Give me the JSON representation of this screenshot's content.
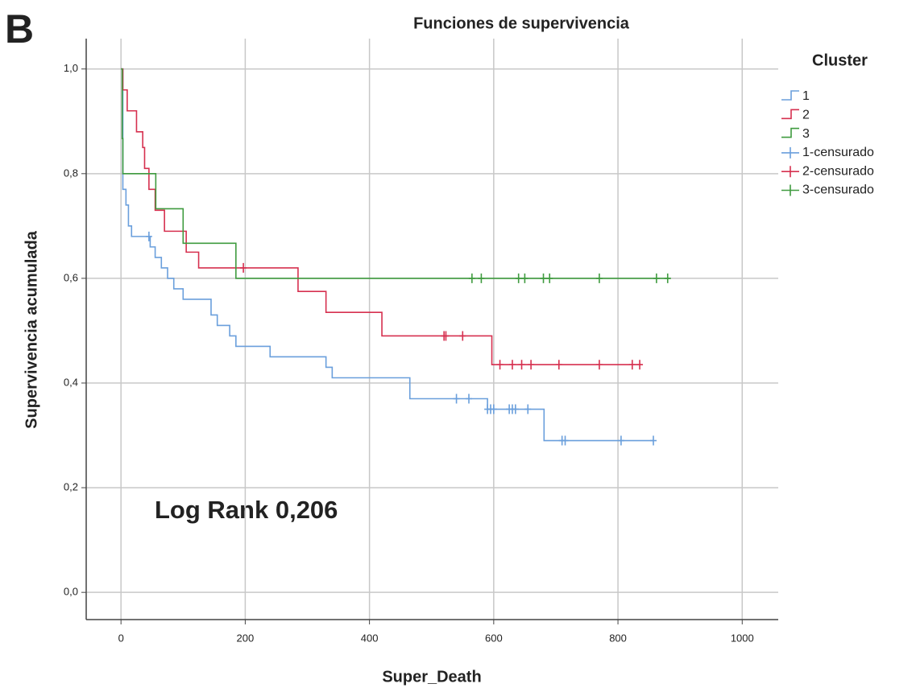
{
  "chart_data": {
    "type": "km",
    "panel_label": "B",
    "title": "Funciones de supervivencia",
    "x_label": "Super_Death",
    "y_label": "Supervivencia acumulada",
    "legend_title": "Cluster",
    "legend": "outside-right",
    "annotation": "Log Rank 0,206",
    "grid": true,
    "xlim": [
      -56,
      1058
    ],
    "ylim": [
      -0.052,
      1.058
    ],
    "xticks": [
      0,
      200,
      400,
      600,
      800,
      1000
    ],
    "yticks": [
      {
        "value": 0,
        "label": "0,0"
      },
      {
        "value": 0.2,
        "label": "0,2"
      },
      {
        "value": 0.4,
        "label": "0,4"
      },
      {
        "value": 0.6,
        "label": "0,6"
      },
      {
        "value": 0.8,
        "label": "0,8"
      },
      {
        "value": 1,
        "label": "1,0"
      }
    ],
    "series": [
      {
        "name": "1",
        "color": "#6a9fdc",
        "style": "step",
        "x": [
          0,
          3,
          8,
          12,
          17,
          47,
          55,
          65,
          75,
          85,
          100,
          145,
          155,
          175,
          185,
          240,
          330,
          340,
          465,
          590,
          681,
          857
        ],
        "values": [
          1,
          0.77,
          0.74,
          0.7,
          0.68,
          0.66,
          0.64,
          0.62,
          0.6,
          0.58,
          0.56,
          0.53,
          0.51,
          0.49,
          0.47,
          0.45,
          0.43,
          0.41,
          0.37,
          0.35,
          0.29,
          0.29
        ]
      },
      {
        "name": "2",
        "color": "#d6304f",
        "style": "step",
        "x": [
          0,
          3,
          10,
          25,
          35,
          38,
          45,
          55,
          70,
          105,
          125,
          285,
          330,
          420,
          597,
          838
        ],
        "values": [
          1,
          0.96,
          0.92,
          0.88,
          0.85,
          0.81,
          0.77,
          0.73,
          0.69,
          0.65,
          0.62,
          0.575,
          0.535,
          0.49,
          0.435,
          0.435
        ]
      },
      {
        "name": "3",
        "color": "#3f9b3f",
        "style": "step",
        "x": [
          0,
          2,
          3,
          56,
          100,
          185,
          885
        ],
        "values": [
          1,
          0.867,
          0.8,
          0.733,
          0.667,
          0.6,
          0.6
        ]
      },
      {
        "name": "1-censurado",
        "color": "#6a9fdc",
        "style": "censored",
        "x": [
          45,
          540,
          560,
          590,
          595,
          600,
          625,
          630,
          635,
          655,
          710,
          715,
          805,
          857
        ],
        "values": [
          0.68,
          0.37,
          0.37,
          0.35,
          0.35,
          0.35,
          0.35,
          0.35,
          0.35,
          0.35,
          0.29,
          0.29,
          0.29,
          0.29
        ]
      },
      {
        "name": "2-censurado",
        "color": "#d6304f",
        "style": "censored",
        "x": [
          197,
          520,
          523,
          550,
          610,
          630,
          645,
          660,
          705,
          770,
          823,
          835
        ],
        "values": [
          0.62,
          0.49,
          0.49,
          0.49,
          0.435,
          0.435,
          0.435,
          0.435,
          0.435,
          0.435,
          0.435,
          0.435
        ]
      },
      {
        "name": "3-censurado",
        "color": "#3f9b3f",
        "style": "censored",
        "x": [
          565,
          580,
          640,
          650,
          680,
          690,
          770,
          862,
          880
        ],
        "values": [
          0.6,
          0.6,
          0.6,
          0.6,
          0.6,
          0.6,
          0.6,
          0.6,
          0.6
        ]
      }
    ]
  }
}
